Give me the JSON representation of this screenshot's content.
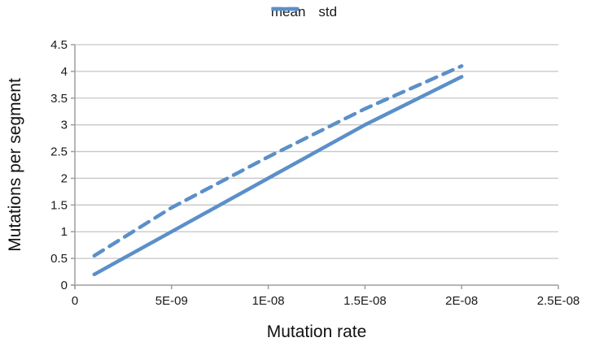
{
  "chart_data": {
    "type": "line",
    "title": "",
    "xlabel": "Mutation rate",
    "ylabel": "Mutations per segment",
    "xlim": [
      0,
      2.5e-08
    ],
    "ylim": [
      0,
      4.5
    ],
    "grid": true,
    "legend_position": "top-center",
    "x_tick_labels": [
      "0",
      "5E-09",
      "1E-08",
      "1.5E-08",
      "2E-08",
      "2.5E-08"
    ],
    "x_tick_values": [
      0,
      5e-09,
      1e-08,
      1.5e-08,
      2e-08,
      2.5e-08
    ],
    "y_tick_labels": [
      "0",
      "0.5",
      "1",
      "1.5",
      "2",
      "2.5",
      "3",
      "3.5",
      "4",
      "4.5"
    ],
    "y_tick_values": [
      0,
      0.5,
      1,
      1.5,
      2,
      2.5,
      3,
      3.5,
      4,
      4.5
    ],
    "series": [
      {
        "name": "mean",
        "style": "solid",
        "color": "#5b8fc9",
        "points": [
          [
            1e-09,
            0.2
          ],
          [
            5e-09,
            1.0
          ],
          [
            1e-08,
            2.0
          ],
          [
            1.5e-08,
            3.0
          ],
          [
            2e-08,
            3.9
          ]
        ]
      },
      {
        "name": "std",
        "style": "dashed",
        "color": "#5b8fc9",
        "points": [
          [
            1e-09,
            0.55
          ],
          [
            5e-09,
            1.45
          ],
          [
            1e-08,
            2.4
          ],
          [
            1.5e-08,
            3.3
          ],
          [
            2e-08,
            4.1
          ]
        ]
      }
    ]
  },
  "style_colors": {
    "line_blue": "#5b8fc9",
    "gridline": "#c6c6c6",
    "axis": "#9e9e9e",
    "tick_text": "#1a1a1a"
  }
}
